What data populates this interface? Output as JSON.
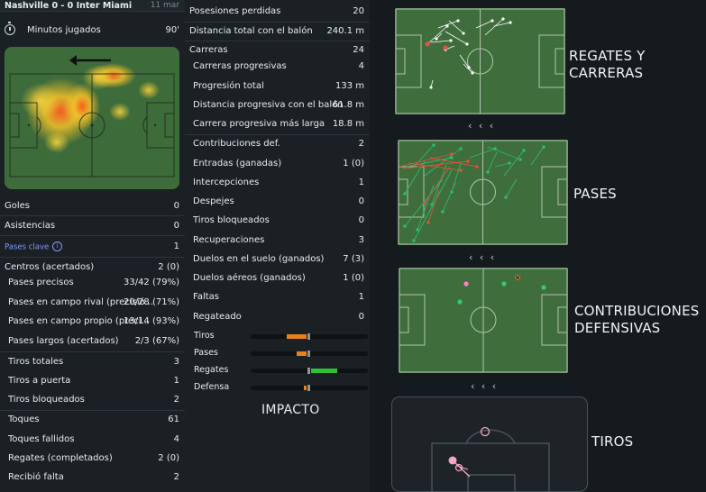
{
  "header": {
    "match": "Nashville 0 - 0 Inter Miami",
    "date": "11 mar"
  },
  "minutes": {
    "label": "Minutos jugados",
    "value": "90'"
  },
  "left_stats": [
    {
      "label": "Goles",
      "value": "0"
    },
    {
      "label": "Asistencias",
      "value": "0"
    },
    {
      "label": "Pases clave",
      "value": "1"
    },
    {
      "label": "Centros (acertados)",
      "value": "2 (0)"
    },
    {
      "label": "Pases precisos",
      "value": "33/42 (79%)"
    },
    {
      "label": "Pases en campo rival (precisió...",
      "value": "20/28 (71%)"
    },
    {
      "label": "Pases en campo propio (preci...",
      "value": "13/14 (93%)"
    },
    {
      "label": "Pases largos (acertados)",
      "value": "2/3 (67%)"
    },
    {
      "label": "Tiros totales",
      "value": "3"
    },
    {
      "label": "Tiros a puerta",
      "value": "1"
    },
    {
      "label": "Tiros bloqueados",
      "value": "2"
    },
    {
      "label": "Toques",
      "value": "61"
    },
    {
      "label": "Toques fallidos",
      "value": "4"
    },
    {
      "label": "Regates (completados)",
      "value": "2 (0)"
    },
    {
      "label": "Recibió falta",
      "value": "2"
    }
  ],
  "mid_stats": [
    {
      "label": "Posesiones perdidas",
      "value": "20"
    },
    {
      "label": "Distancia total con el balón",
      "value": "240.1 m"
    },
    {
      "label": "Carreras",
      "value": "24"
    },
    {
      "label": "Carreras progresivas",
      "value": "4"
    },
    {
      "label": "Progresión total",
      "value": "133 m"
    },
    {
      "label": "Distancia progresiva con el balón",
      "value": "61.8 m"
    },
    {
      "label": "Carrera progresiva más larga",
      "value": "18.8 m"
    },
    {
      "label": "Contribuciones def.",
      "value": "2"
    },
    {
      "label": "Entradas (ganadas)",
      "value": "1 (0)"
    },
    {
      "label": "Intercepciones",
      "value": "1"
    },
    {
      "label": "Despejes",
      "value": "0"
    },
    {
      "label": "Tiros bloqueados",
      "value": "0"
    },
    {
      "label": "Recuperaciones",
      "value": "3"
    },
    {
      "label": "Duelos en el suelo (ganados)",
      "value": "7 (3)"
    },
    {
      "label": "Duelos aéreos (ganados)",
      "value": "1 (0)"
    },
    {
      "label": "Faltas",
      "value": "1"
    },
    {
      "label": "Regateado",
      "value": "0"
    }
  ],
  "impact": {
    "title": "IMPACTO",
    "rows": [
      {
        "label": "Tiros",
        "color": "#e8821a"
      },
      {
        "label": "Pases",
        "color": "#e8821a"
      },
      {
        "label": "Regates",
        "color": "#2fbf3b"
      },
      {
        "label": "Defensa",
        "color": "#e8821a"
      }
    ]
  },
  "panels": {
    "dribbles": {
      "line1": "REGATES Y",
      "line2": "CARRERAS"
    },
    "passes": {
      "label": "PASES"
    },
    "defense": {
      "line1": "CONTRIBUCIONES",
      "line2": "DEFENSIVAS"
    },
    "shots": {
      "label": "TIROS"
    },
    "nav": "‹ ‹ ‹"
  },
  "colors": {
    "pitch": "#3f6e3c",
    "pass_success": "#2fb870",
    "pass_fail": "#d9553d",
    "dribble": "#ffffff"
  }
}
